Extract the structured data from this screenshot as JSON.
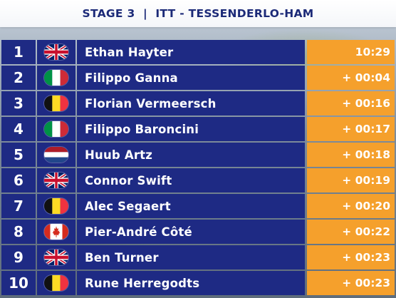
{
  "header": {
    "title": "STAGE 3  |  ITT - TESSENDERLO-HAM"
  },
  "colors": {
    "header_text": "#1c2a78",
    "row_bg": "#1e2a84",
    "time_bg": "#f5a02c"
  },
  "results": [
    {
      "rank": "1",
      "flag": "gb-flag-icon",
      "name": "Ethan Hayter",
      "time": "10:29"
    },
    {
      "rank": "2",
      "flag": "it-flag-icon",
      "name": "Filippo Ganna",
      "time": "+ 00:04"
    },
    {
      "rank": "3",
      "flag": "be-flag-icon",
      "name": "Florian Vermeersch",
      "time": "+ 00:16"
    },
    {
      "rank": "4",
      "flag": "it-flag-icon",
      "name": "Filippo Baroncini",
      "time": "+ 00:17"
    },
    {
      "rank": "5",
      "flag": "nl-flag-icon",
      "name": "Huub Artz",
      "time": "+ 00:18"
    },
    {
      "rank": "6",
      "flag": "gb-flag-icon",
      "name": "Connor Swift",
      "time": "+ 00:19"
    },
    {
      "rank": "7",
      "flag": "be-flag-icon",
      "name": "Alec Segaert",
      "time": "+ 00:20"
    },
    {
      "rank": "8",
      "flag": "ca-flag-icon",
      "name": "Pier-André Côté",
      "time": "+ 00:22"
    },
    {
      "rank": "9",
      "flag": "gb-flag-icon",
      "name": "Ben Turner",
      "time": "+ 00:23"
    },
    {
      "rank": "10",
      "flag": "be-flag-icon",
      "name": "Rune Herregodts",
      "time": "+ 00:23"
    }
  ]
}
